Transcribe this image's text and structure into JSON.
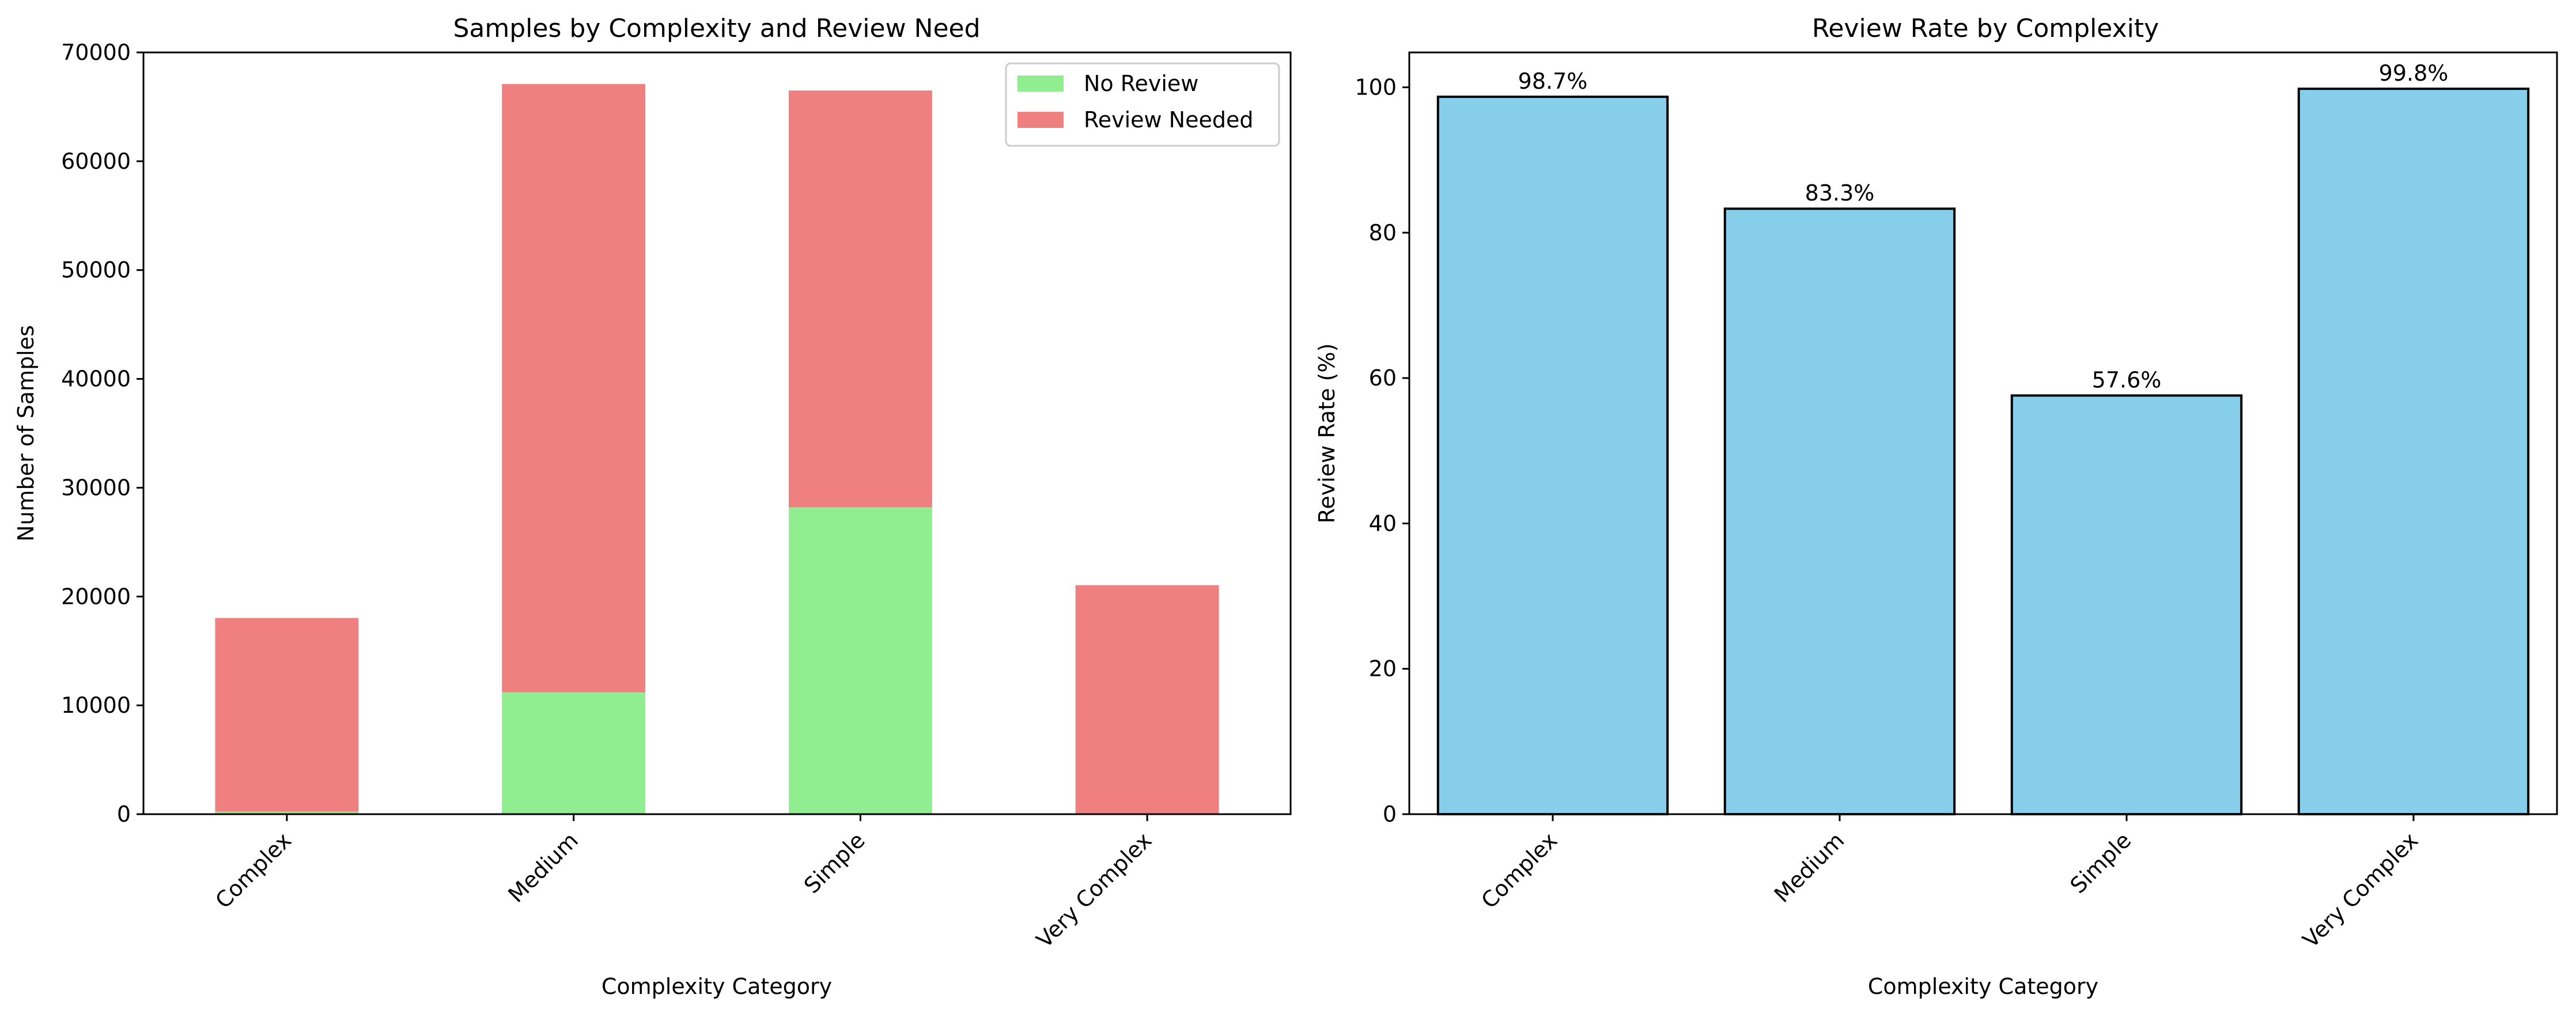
{
  "figure": {
    "background": "#ffffff"
  },
  "chart_data": [
    {
      "type": "bar",
      "stacked": true,
      "title": "Samples by Complexity and Review Need",
      "xlabel": "Complexity Category",
      "ylabel": "Number of Samples",
      "categories": [
        "Complex",
        "Medium",
        "Simple",
        "Very Complex"
      ],
      "series": [
        {
          "name": "No Review",
          "color": "#90ee90",
          "values": [
            230,
            11200,
            28200,
            40
          ]
        },
        {
          "name": "Review Needed",
          "color": "#f08080",
          "values": [
            17800,
            55900,
            38300,
            21000
          ]
        }
      ],
      "ylim": [
        0,
        70000
      ],
      "yticks": [
        0,
        10000,
        20000,
        30000,
        40000,
        50000,
        60000,
        70000
      ],
      "grid": false,
      "legend": "top-right"
    },
    {
      "type": "bar",
      "title": "Review Rate by Complexity",
      "xlabel": "Complexity Category",
      "ylabel": "Review Rate (%)",
      "categories": [
        "Complex",
        "Medium",
        "Simple",
        "Very Complex"
      ],
      "values": [
        98.7,
        83.3,
        57.6,
        99.8
      ],
      "data_labels": [
        "98.7%",
        "83.3%",
        "57.6%",
        "99.8%"
      ],
      "color": "#87ceeb",
      "edgecolor": "#000000",
      "ylim": [
        0,
        104.8
      ],
      "yticks": [
        0,
        20,
        40,
        60,
        80,
        100
      ],
      "grid": false
    }
  ]
}
